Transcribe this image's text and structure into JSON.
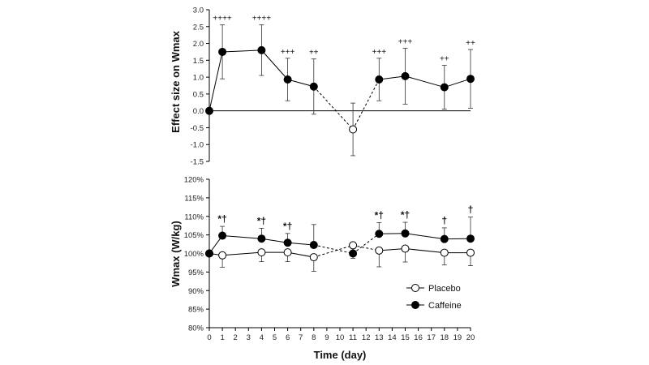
{
  "chart_data": [
    {
      "type": "line",
      "panel": "top",
      "ylabel": "Effect size on Wmax",
      "ylim": [
        -1.5,
        3.0
      ],
      "ytick_labels": [
        "3.0",
        "2.5",
        "2.0",
        "1.5",
        "1.0",
        "0.5",
        "0.0",
        "-0.5",
        "-1.0",
        "-1.5"
      ],
      "yticks": [
        3.0,
        2.5,
        2.0,
        1.5,
        1.0,
        0.5,
        0.0,
        -0.5,
        -1.0,
        -1.5
      ],
      "xlim": [
        0,
        20
      ],
      "xticks": [
        0,
        1,
        2,
        3,
        4,
        5,
        6,
        7,
        8,
        9,
        10,
        11,
        12,
        13,
        14,
        15,
        16,
        17,
        18,
        19,
        20
      ],
      "zero_line": true,
      "series": [
        {
          "name": "Caffeine",
          "marker": "filled",
          "x": [
            0,
            1,
            4,
            6,
            8,
            11,
            13,
            15,
            18,
            20
          ],
          "y": [
            0.0,
            1.75,
            1.8,
            0.93,
            0.72,
            -0.55,
            0.93,
            1.03,
            0.7,
            0.95
          ],
          "err": [
            0,
            0.8,
            0.75,
            0.63,
            0.82,
            0.78,
            0.63,
            0.83,
            0.65,
            0.87
          ],
          "hollow": [
            false,
            false,
            false,
            false,
            false,
            true,
            false,
            false,
            false,
            false
          ],
          "dashed_segments": [
            [
              8,
              11
            ],
            [
              11,
              13
            ]
          ],
          "annotations": [
            "",
            "++++",
            "++++",
            "+++",
            "++",
            "",
            "+++",
            "+++",
            "++",
            "++"
          ]
        }
      ]
    },
    {
      "type": "line",
      "panel": "bottom",
      "xlabel": "Time (day)",
      "ylabel": "Wmax (W/kg)",
      "ylim": [
        80,
        120
      ],
      "ytick_labels": [
        "120%",
        "115%",
        "110%",
        "105%",
        "100%",
        "95%",
        "90%",
        "85%",
        "80%"
      ],
      "yticks": [
        120,
        115,
        110,
        105,
        100,
        95,
        90,
        85,
        80
      ],
      "xlim": [
        0,
        20
      ],
      "xticks": [
        0,
        1,
        2,
        3,
        4,
        5,
        6,
        7,
        8,
        9,
        10,
        11,
        12,
        13,
        14,
        15,
        16,
        17,
        18,
        19,
        20
      ],
      "xtick_labels": [
        "0",
        "1",
        "2",
        "3",
        "4",
        "5",
        "6",
        "7",
        "8",
        "9",
        "10",
        "11",
        "12",
        "13",
        "14",
        "15",
        "16",
        "17",
        "18",
        "19",
        "20"
      ],
      "legend_position": "right",
      "series": [
        {
          "name": "Placebo",
          "marker": "hollow",
          "x": [
            0,
            1,
            4,
            6,
            8,
            11,
            13,
            15,
            18,
            20
          ],
          "y": [
            100,
            99.5,
            100.3,
            100.3,
            99.0,
            102.2,
            100.8,
            101.3,
            100.2,
            100.2
          ],
          "err": [
            0,
            3.2,
            2.5,
            2.5,
            3.8,
            3.5,
            4.4,
            3.6,
            3.3,
            3.5
          ],
          "dashed_segments": [
            [
              8,
              11
            ],
            [
              11,
              13
            ]
          ]
        },
        {
          "name": "Caffeine",
          "marker": "filled",
          "x": [
            0,
            1,
            4,
            6,
            8,
            11,
            13,
            15,
            18,
            20
          ],
          "y": [
            100,
            104.8,
            104.0,
            102.9,
            102.3,
            100.0,
            105.3,
            105.4,
            103.9,
            104.0
          ],
          "err": [
            0,
            2.5,
            2.8,
            2.5,
            5.5,
            1.5,
            3.0,
            3.0,
            3.0,
            5.8
          ],
          "dashed_segments": [
            [
              8,
              11
            ],
            [
              11,
              13
            ]
          ],
          "annotations": [
            "",
            "*†",
            "*†",
            "*†",
            "",
            "",
            "*†",
            "*†",
            "†",
            "†"
          ]
        }
      ]
    }
  ],
  "legend": {
    "placebo_label": "Placebo",
    "caffeine_label": "Caffeine"
  }
}
